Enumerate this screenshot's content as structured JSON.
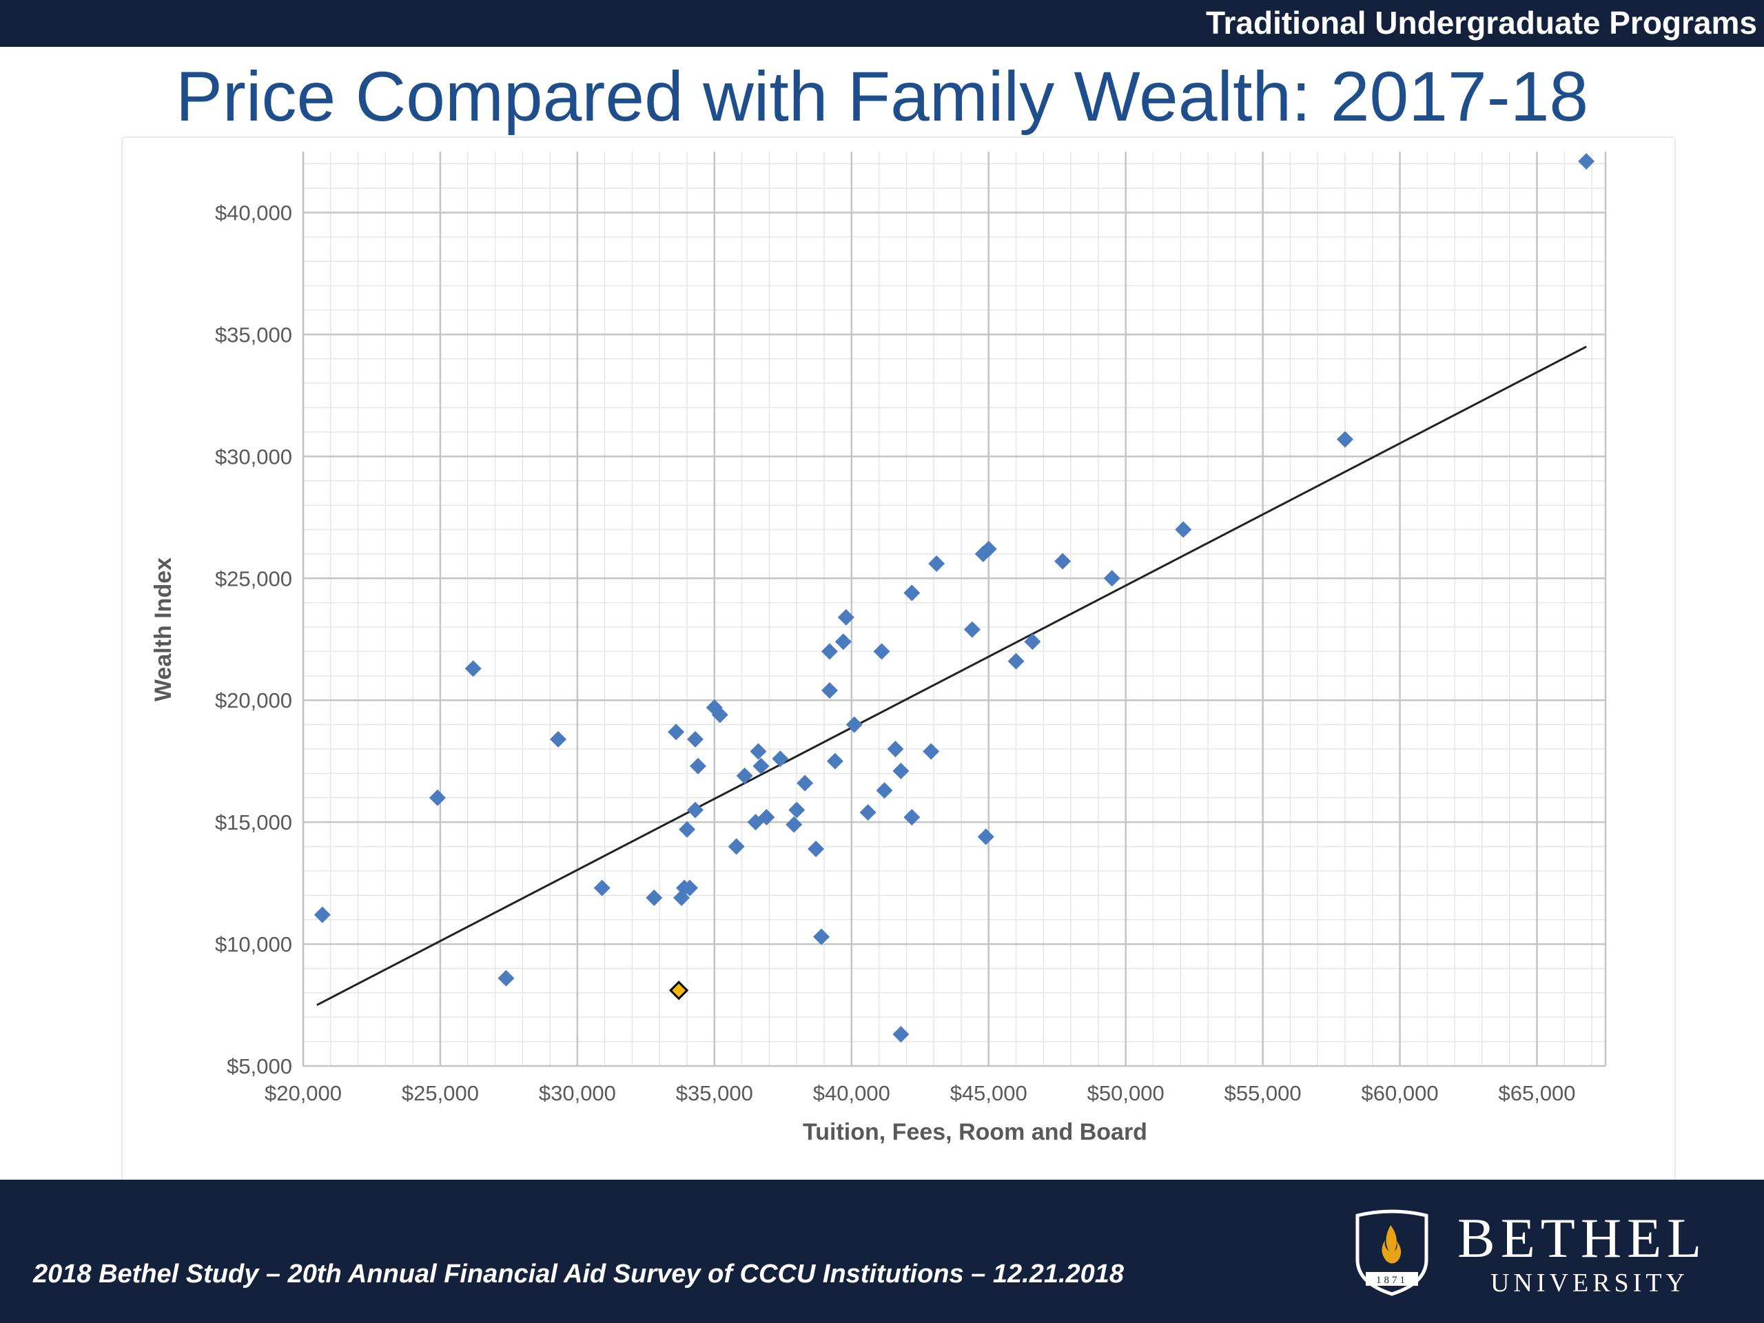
{
  "header": {
    "section_label": "Traditional Undergraduate Programs"
  },
  "slide": {
    "title": "Price Compared with Family Wealth: 2017-18"
  },
  "footer": {
    "citation": "2018 Bethel Study – 20th Annual Financial Aid Survey of CCCU Institutions – 12.21.2018",
    "logo_name": "BETHEL",
    "logo_subname": "UNIVERSITY",
    "logo_year": "1871",
    "logo_icon": "flame-shield-icon"
  },
  "colors": {
    "navy_bar": "#14213d",
    "title_blue": "#1f4e8c",
    "point_blue": "#4a7bbf",
    "highlight_gold": "#f5b800",
    "trend_line": "#222222",
    "logo_gold": "#e8a317"
  },
  "chart_data": {
    "type": "scatter",
    "title": "",
    "xlabel": "Tuition, Fees, Room and Board",
    "ylabel": "Wealth Index",
    "xlim": [
      20000,
      67500
    ],
    "ylim": [
      5000,
      42500
    ],
    "x_ticks": [
      20000,
      25000,
      30000,
      35000,
      40000,
      45000,
      50000,
      55000,
      60000,
      65000
    ],
    "x_tick_labels": [
      "$20,000",
      "$25,000",
      "$30,000",
      "$35,000",
      "$40,000",
      "$45,000",
      "$50,000",
      "$55,000",
      "$60,000",
      "$65,000"
    ],
    "y_ticks": [
      5000,
      10000,
      15000,
      20000,
      25000,
      30000,
      35000,
      40000
    ],
    "y_tick_labels": [
      "$5,000",
      "$10,000",
      "$15,000",
      "$20,000",
      "$25,000",
      "$30,000",
      "$35,000",
      "$40,000"
    ],
    "grid": true,
    "minor_grid": true,
    "series": [
      {
        "marker": "diamond",
        "color": "#4a7bbf",
        "points": [
          [
            20700,
            11200
          ],
          [
            24900,
            16000
          ],
          [
            26200,
            21300
          ],
          [
            27400,
            8600
          ],
          [
            29300,
            18400
          ],
          [
            30900,
            12300
          ],
          [
            32800,
            11900
          ],
          [
            33600,
            18700
          ],
          [
            33800,
            11900
          ],
          [
            33900,
            12300
          ],
          [
            34100,
            12300
          ],
          [
            34000,
            14700
          ],
          [
            34300,
            15500
          ],
          [
            34300,
            18400
          ],
          [
            34400,
            17300
          ],
          [
            35000,
            19700
          ],
          [
            35200,
            19400
          ],
          [
            35800,
            14000
          ],
          [
            36100,
            16900
          ],
          [
            36500,
            15000
          ],
          [
            36600,
            17900
          ],
          [
            36700,
            17300
          ],
          [
            36900,
            15200
          ],
          [
            37400,
            17600
          ],
          [
            37900,
            14900
          ],
          [
            38000,
            15500
          ],
          [
            38300,
            16600
          ],
          [
            38700,
            13900
          ],
          [
            38900,
            10300
          ],
          [
            39200,
            22000
          ],
          [
            39200,
            20400
          ],
          [
            39400,
            17500
          ],
          [
            39700,
            22400
          ],
          [
            39800,
            23400
          ],
          [
            40100,
            19000
          ],
          [
            40600,
            15400
          ],
          [
            41100,
            22000
          ],
          [
            41200,
            16300
          ],
          [
            41600,
            18000
          ],
          [
            41800,
            17100
          ],
          [
            41800,
            6300
          ],
          [
            42200,
            24400
          ],
          [
            42200,
            15200
          ],
          [
            42900,
            17900
          ],
          [
            43100,
            25600
          ],
          [
            44400,
            22900
          ],
          [
            44800,
            26000
          ],
          [
            44900,
            14400
          ],
          [
            45000,
            26200
          ],
          [
            46000,
            21600
          ],
          [
            46600,
            22400
          ],
          [
            47700,
            25700
          ],
          [
            49500,
            25000
          ],
          [
            52100,
            27000
          ],
          [
            58000,
            30700
          ],
          [
            66800,
            42100
          ]
        ]
      },
      {
        "marker": "diamond",
        "color": "#f5b800",
        "points": [
          [
            33700,
            8100
          ]
        ]
      }
    ],
    "trendline": {
      "type": "linear",
      "from": [
        20500,
        7500
      ],
      "to": [
        66800,
        34500
      ]
    }
  }
}
